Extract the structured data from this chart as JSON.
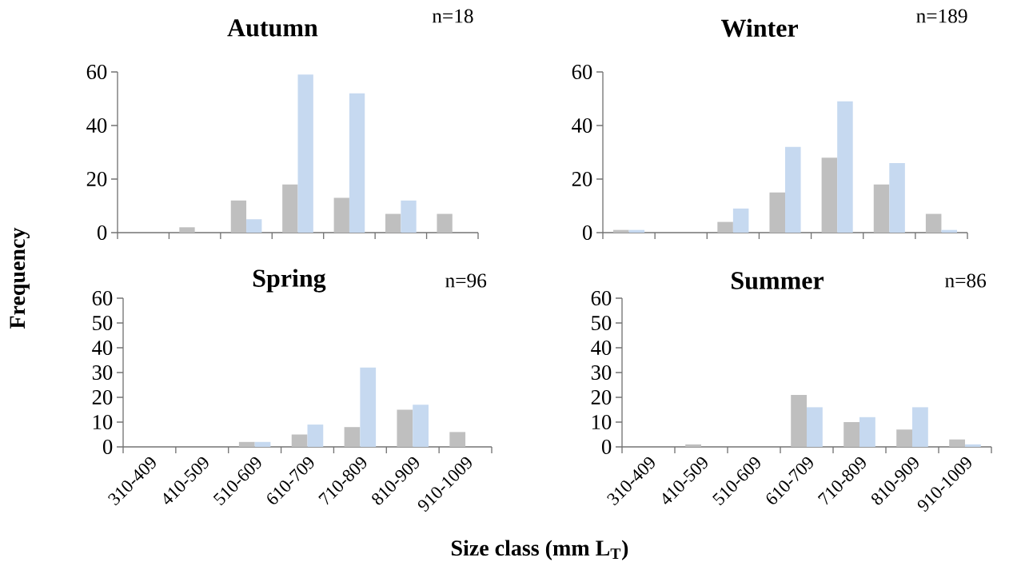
{
  "chart_data": [
    {
      "type": "bar",
      "title": "Autumn",
      "ylabel": "Frequency",
      "annotations": [
        "n=18"
      ],
      "categories": [
        null,
        null,
        null,
        null,
        null,
        null,
        null
      ],
      "tick_labels": "y",
      "ylim": [
        0,
        60
      ],
      "yticks": [
        0,
        20,
        40,
        60
      ],
      "series": [
        {
          "color": "#bfbfbf",
          "values": [
            0,
            2,
            12,
            18,
            13,
            7,
            7
          ]
        },
        {
          "color": "#c6d9f0",
          "values": [
            0,
            0,
            5,
            59,
            52,
            12,
            0
          ]
        }
      ]
    },
    {
      "type": "bar",
      "title": "Winter",
      "annotations": [
        "n=189"
      ],
      "categories": [
        null,
        null,
        null,
        null,
        null,
        null,
        null
      ],
      "tick_labels": "y",
      "ylim": [
        0,
        60
      ],
      "yticks": [
        0,
        20,
        40,
        60
      ],
      "series": [
        {
          "color": "#bfbfbf",
          "values": [
            1,
            0,
            4,
            15,
            28,
            18,
            7
          ]
        },
        {
          "color": "#c6d9f0",
          "values": [
            1,
            0,
            9,
            32,
            49,
            26,
            1
          ]
        }
      ]
    },
    {
      "type": "bar",
      "title": "Spring",
      "xlabel": "Size class (mm L$_{T}$)",
      "annotations": [
        "n=96"
      ],
      "categories": [
        "310-409",
        "410-509",
        "510-609",
        "610-709",
        "710-809",
        "810-909",
        "910-1009"
      ],
      "ylim": [
        0,
        60
      ],
      "yticks": [
        0,
        10,
        20,
        30,
        40,
        50,
        60
      ],
      "series": [
        {
          "color": "#bfbfbf",
          "values": [
            0,
            0,
            2,
            5,
            8,
            15,
            6
          ]
        },
        {
          "color": "#c6d9f0",
          "values": [
            0,
            0,
            2,
            9,
            32,
            17,
            0
          ]
        }
      ]
    },
    {
      "type": "bar",
      "title": "Summer",
      "annotations": [
        "n=86"
      ],
      "categories": [
        "310-409",
        "410-509",
        "510-609",
        "610-709",
        "710-809",
        "810-909",
        "910-1009"
      ],
      "ylim": [
        0,
        60
      ],
      "yticks": [
        0,
        10,
        20,
        30,
        40,
        50,
        60
      ],
      "series": [
        {
          "color": "#bfbfbf",
          "values": [
            0,
            1,
            0,
            21,
            10,
            7,
            3
          ]
        },
        {
          "color": "#c6d9f0",
          "values": [
            0,
            0,
            0,
            16,
            12,
            16,
            1
          ]
        }
      ]
    }
  ]
}
